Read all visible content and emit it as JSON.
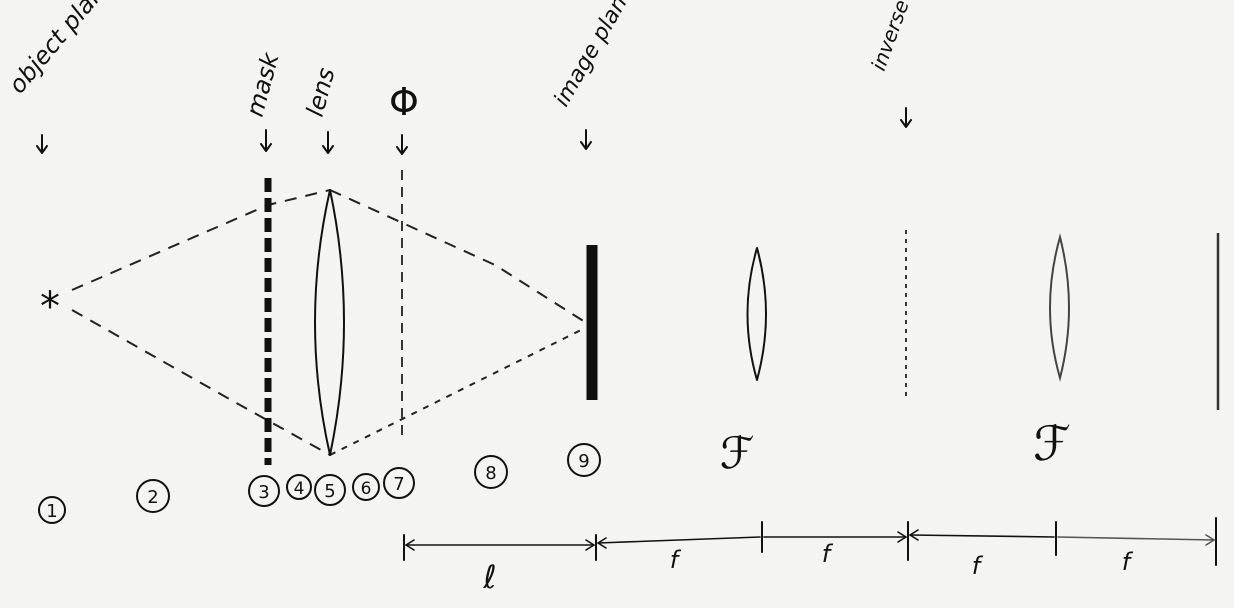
{
  "labels": {
    "object_plane": "object plane",
    "mask": "mask",
    "lens": "lens",
    "phi": "Φ",
    "image_plane": "image plane",
    "inverse_filter": "inverse filter"
  },
  "transforms": {
    "first": "ℱ",
    "second": "ℱ"
  },
  "regions": [
    "1",
    "2",
    "3",
    "4",
    "5",
    "6",
    "7",
    "8",
    "9"
  ],
  "distances": {
    "l": "ℓ",
    "f1": "f",
    "f2": "f",
    "f3": "f",
    "f4": "f"
  },
  "source_symbol": "*",
  "ink_color": "#111111",
  "background_color": "#f4f4f2"
}
